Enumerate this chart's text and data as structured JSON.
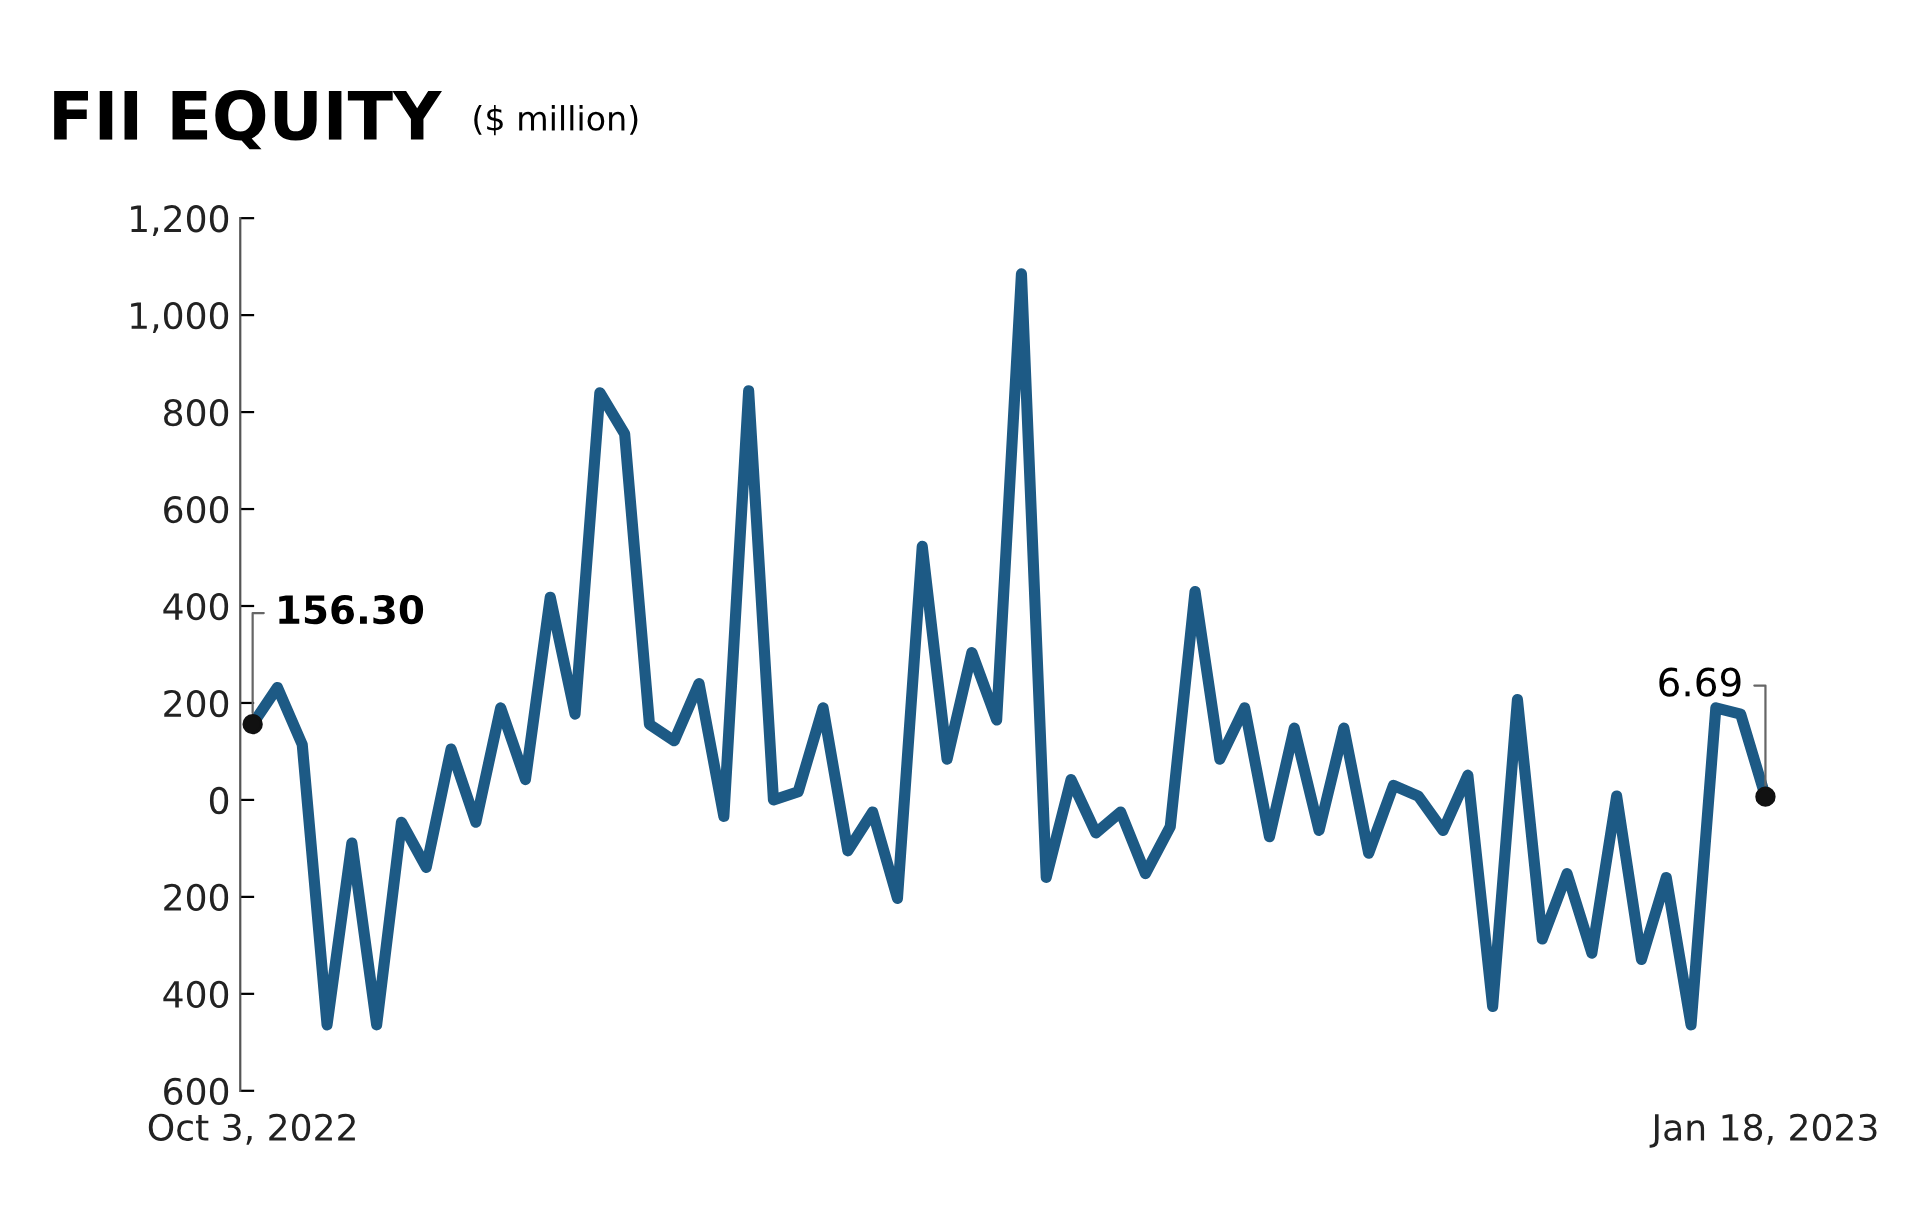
{
  "chart_data": {
    "type": "line",
    "title": "FII EQUITY",
    "subtitle": "($ million)",
    "categories": [
      "Oct 3, 2022",
      null,
      null,
      null,
      null,
      null,
      null,
      null,
      null,
      null,
      null,
      null,
      null,
      null,
      null,
      null,
      null,
      null,
      null,
      null,
      null,
      null,
      null,
      null,
      null,
      null,
      null,
      null,
      null,
      null,
      null,
      null,
      null,
      null,
      null,
      null,
      null,
      null,
      null,
      null,
      null,
      null,
      null,
      null,
      null,
      null,
      null,
      null,
      null,
      null,
      null,
      null,
      null,
      null,
      null,
      null,
      null,
      null,
      null,
      null,
      null,
      "Jan 18, 2023"
    ],
    "series": [
      {
        "color": "#1d5a85",
        "values": [
          156.3,
          232,
          114,
          -464,
          -89,
          -464,
          -46,
          -139,
          105,
          -46,
          190,
          42,
          418,
          177,
          840,
          755,
          156,
          122,
          240,
          -34,
          844,
          0,
          17,
          190,
          -105,
          -25,
          -203,
          523,
          84,
          304,
          165,
          1085,
          -160,
          42,
          -68,
          -25,
          -152,
          -55,
          430,
          84,
          190,
          -76,
          148,
          -63,
          148,
          -110,
          30,
          8,
          -63,
          51,
          -426,
          207,
          -287,
          -152,
          -316,
          8,
          -329,
          -160,
          -464,
          190,
          177,
          6.69
        ]
      }
    ],
    "ylim": [
      -600,
      1200
    ],
    "yticks": [
      {
        "value": -600,
        "label": "600"
      },
      {
        "value": -400,
        "label": "400"
      },
      {
        "value": -200,
        "label": "200"
      },
      0,
      {
        "value": 200,
        "label": "200"
      },
      {
        "value": 400,
        "label": "400"
      },
      {
        "value": 600,
        "label": "600"
      },
      {
        "value": 800,
        "label": "800"
      },
      {
        "value": 1000,
        "label": "1,000"
      },
      {
        "value": 1200,
        "label": "1,200"
      }
    ],
    "grid": false,
    "legend": false,
    "annotations": [
      {
        "text": "156.30",
        "x": "Oct 3, 2022",
        "y": 156.3
      },
      {
        "text": "6.69",
        "x": "Jan 18, 2023",
        "y": 6.69
      }
    ]
  }
}
